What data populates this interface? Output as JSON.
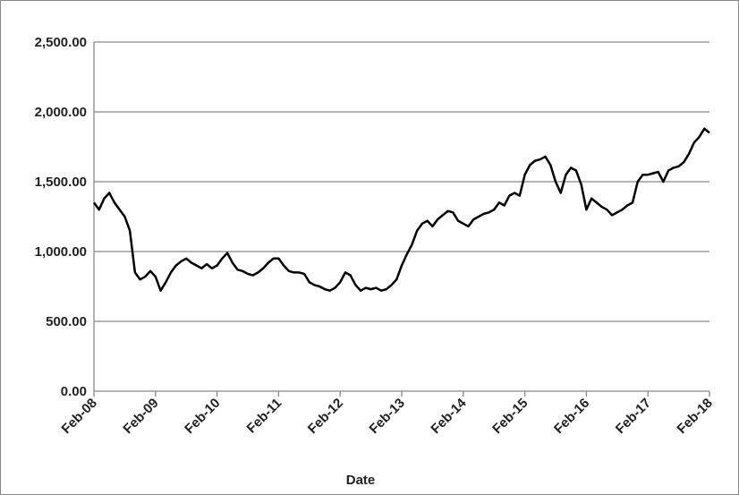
{
  "chart_data": {
    "type": "line",
    "x_label": "Date",
    "x": [
      "2008-02",
      "2008-03",
      "2008-04",
      "2008-05",
      "2008-06",
      "2008-07",
      "2008-08",
      "2008-09",
      "2008-10",
      "2008-11",
      "2008-12",
      "2009-01",
      "2009-02",
      "2009-03",
      "2009-04",
      "2009-05",
      "2009-06",
      "2009-07",
      "2009-08",
      "2009-09",
      "2009-10",
      "2009-11",
      "2009-12",
      "2010-01",
      "2010-02",
      "2010-03",
      "2010-04",
      "2010-05",
      "2010-06",
      "2010-07",
      "2010-08",
      "2010-09",
      "2010-10",
      "2010-11",
      "2010-12",
      "2011-01",
      "2011-02",
      "2011-03",
      "2011-04",
      "2011-05",
      "2011-06",
      "2011-07",
      "2011-08",
      "2011-09",
      "2011-10",
      "2011-11",
      "2011-12",
      "2012-01",
      "2012-02",
      "2012-03",
      "2012-04",
      "2012-05",
      "2012-06",
      "2012-07",
      "2012-08",
      "2012-09",
      "2012-10",
      "2012-11",
      "2012-12",
      "2013-01",
      "2013-02",
      "2013-03",
      "2013-04",
      "2013-05",
      "2013-06",
      "2013-07",
      "2013-08",
      "2013-09",
      "2013-10",
      "2013-11",
      "2013-12",
      "2014-01",
      "2014-02",
      "2014-03",
      "2014-04",
      "2014-05",
      "2014-06",
      "2014-07",
      "2014-08",
      "2014-09",
      "2014-10",
      "2014-11",
      "2014-12",
      "2015-01",
      "2015-02",
      "2015-03",
      "2015-04",
      "2015-05",
      "2015-06",
      "2015-07",
      "2015-08",
      "2015-09",
      "2015-10",
      "2015-11",
      "2015-12",
      "2016-01",
      "2016-02",
      "2016-03",
      "2016-04",
      "2016-05",
      "2016-06",
      "2016-07",
      "2016-08",
      "2016-09",
      "2016-10",
      "2016-11",
      "2016-12",
      "2017-01",
      "2017-02",
      "2017-03",
      "2017-04",
      "2017-05",
      "2017-06",
      "2017-07",
      "2017-08",
      "2017-09",
      "2017-10",
      "2017-11",
      "2017-12",
      "2018-01",
      "2018-02"
    ],
    "series": [
      {
        "color": "#000000",
        "values": [
          1350,
          1300,
          1380,
          1420,
          1350,
          1300,
          1250,
          1150,
          850,
          800,
          820,
          860,
          820,
          720,
          780,
          850,
          900,
          930,
          950,
          920,
          900,
          880,
          910,
          880,
          900,
          950,
          990,
          920,
          870,
          860,
          840,
          830,
          850,
          880,
          920,
          950,
          950,
          900,
          860,
          850,
          850,
          840,
          780,
          760,
          750,
          730,
          720,
          740,
          780,
          850,
          830,
          760,
          720,
          740,
          730,
          740,
          720,
          730,
          760,
          800,
          900,
          980,
          1050,
          1150,
          1200,
          1220,
          1180,
          1230,
          1260,
          1290,
          1280,
          1220,
          1200,
          1180,
          1230,
          1250,
          1270,
          1280,
          1300,
          1350,
          1330,
          1400,
          1420,
          1400,
          1550,
          1620,
          1650,
          1660,
          1680,
          1620,
          1500,
          1420,
          1550,
          1600,
          1580,
          1480,
          1300,
          1380,
          1350,
          1320,
          1300,
          1260,
          1280,
          1300,
          1330,
          1350,
          1500,
          1550,
          1550,
          1560,
          1570,
          1500,
          1580,
          1600,
          1610,
          1640,
          1700,
          1780,
          1820,
          1880,
          1850
        ]
      }
    ],
    "xlim": [
      "2008-02",
      "2018-02"
    ],
    "xticks": [
      {
        "value": "2008-02",
        "label": "Feb-08"
      },
      {
        "value": "2009-02",
        "label": "Feb-09"
      },
      {
        "value": "2010-02",
        "label": "Feb-10"
      },
      {
        "value": "2011-02",
        "label": "Feb-11"
      },
      {
        "value": "2012-02",
        "label": "Feb-12"
      },
      {
        "value": "2013-02",
        "label": "Feb-13"
      },
      {
        "value": "2014-02",
        "label": "Feb-14"
      },
      {
        "value": "2015-02",
        "label": "Feb-15"
      },
      {
        "value": "2016-02",
        "label": "Feb-16"
      },
      {
        "value": "2017-02",
        "label": "Feb-17"
      },
      {
        "value": "2018-02",
        "label": "Feb-18"
      }
    ],
    "ylim": [
      0,
      2500
    ],
    "yticks": [
      {
        "value": 0,
        "label": "0.00"
      },
      {
        "value": 500,
        "label": "500.00"
      },
      {
        "value": 1000,
        "label": "1,000.00"
      },
      {
        "value": 1500,
        "label": "1,500.00"
      },
      {
        "value": 2000,
        "label": "2,000.00"
      },
      {
        "value": 2500,
        "label": "2,500.00"
      }
    ],
    "grid": true
  }
}
